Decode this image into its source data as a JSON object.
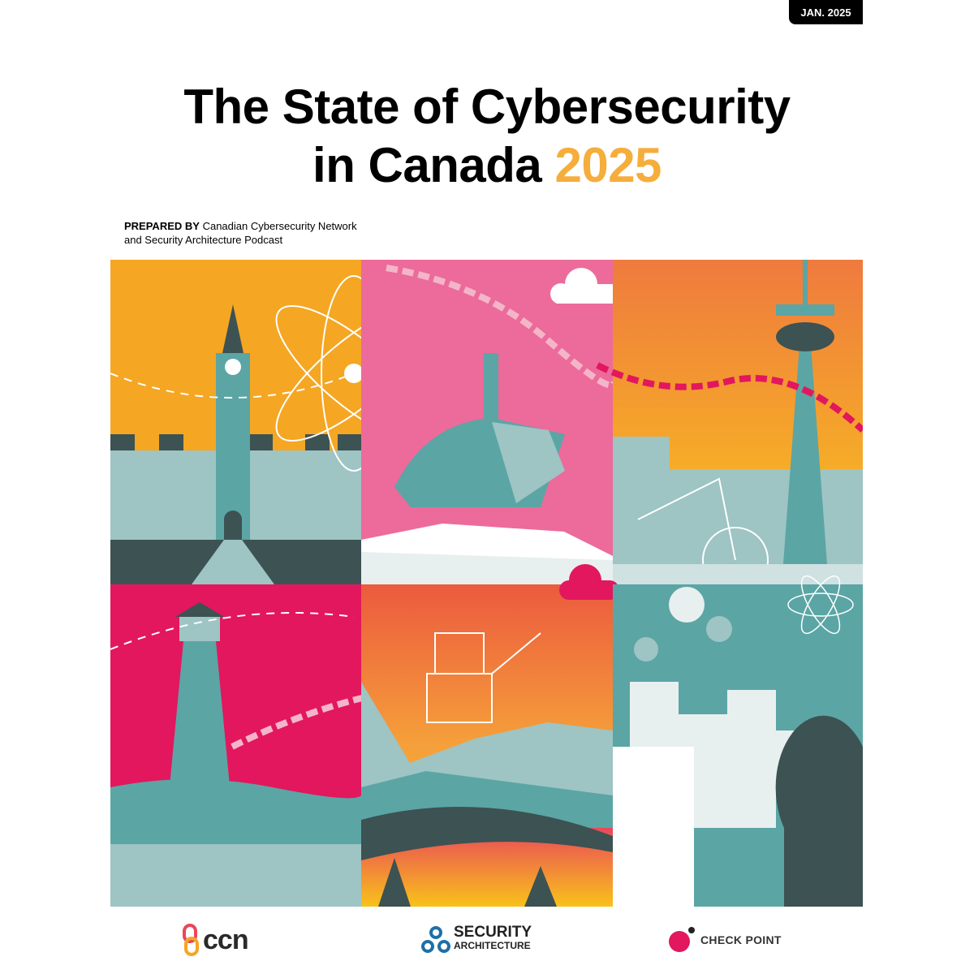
{
  "badge": {
    "date": "JAN. 2025"
  },
  "title": {
    "line1": "The State of Cybersecurity",
    "line2": "in Canada",
    "year": "2025"
  },
  "prepared": {
    "label": "PREPARED BY",
    "line1": "Canadian Cybersecurity Network",
    "line2": "and Security Architecture Podcast"
  },
  "logos": {
    "ccn": "ccn",
    "security_architecture": {
      "line1": "SECURITY",
      "line2": "ARCHITECTURE"
    },
    "check_point": "CHECK POINT"
  },
  "colors": {
    "accent": "#f5ad3c",
    "teal": "#5ba5a5",
    "pink": "#ec6b9a",
    "magenta": "#e2175e",
    "orange": "#f5a623",
    "dark": "#3d5252"
  }
}
